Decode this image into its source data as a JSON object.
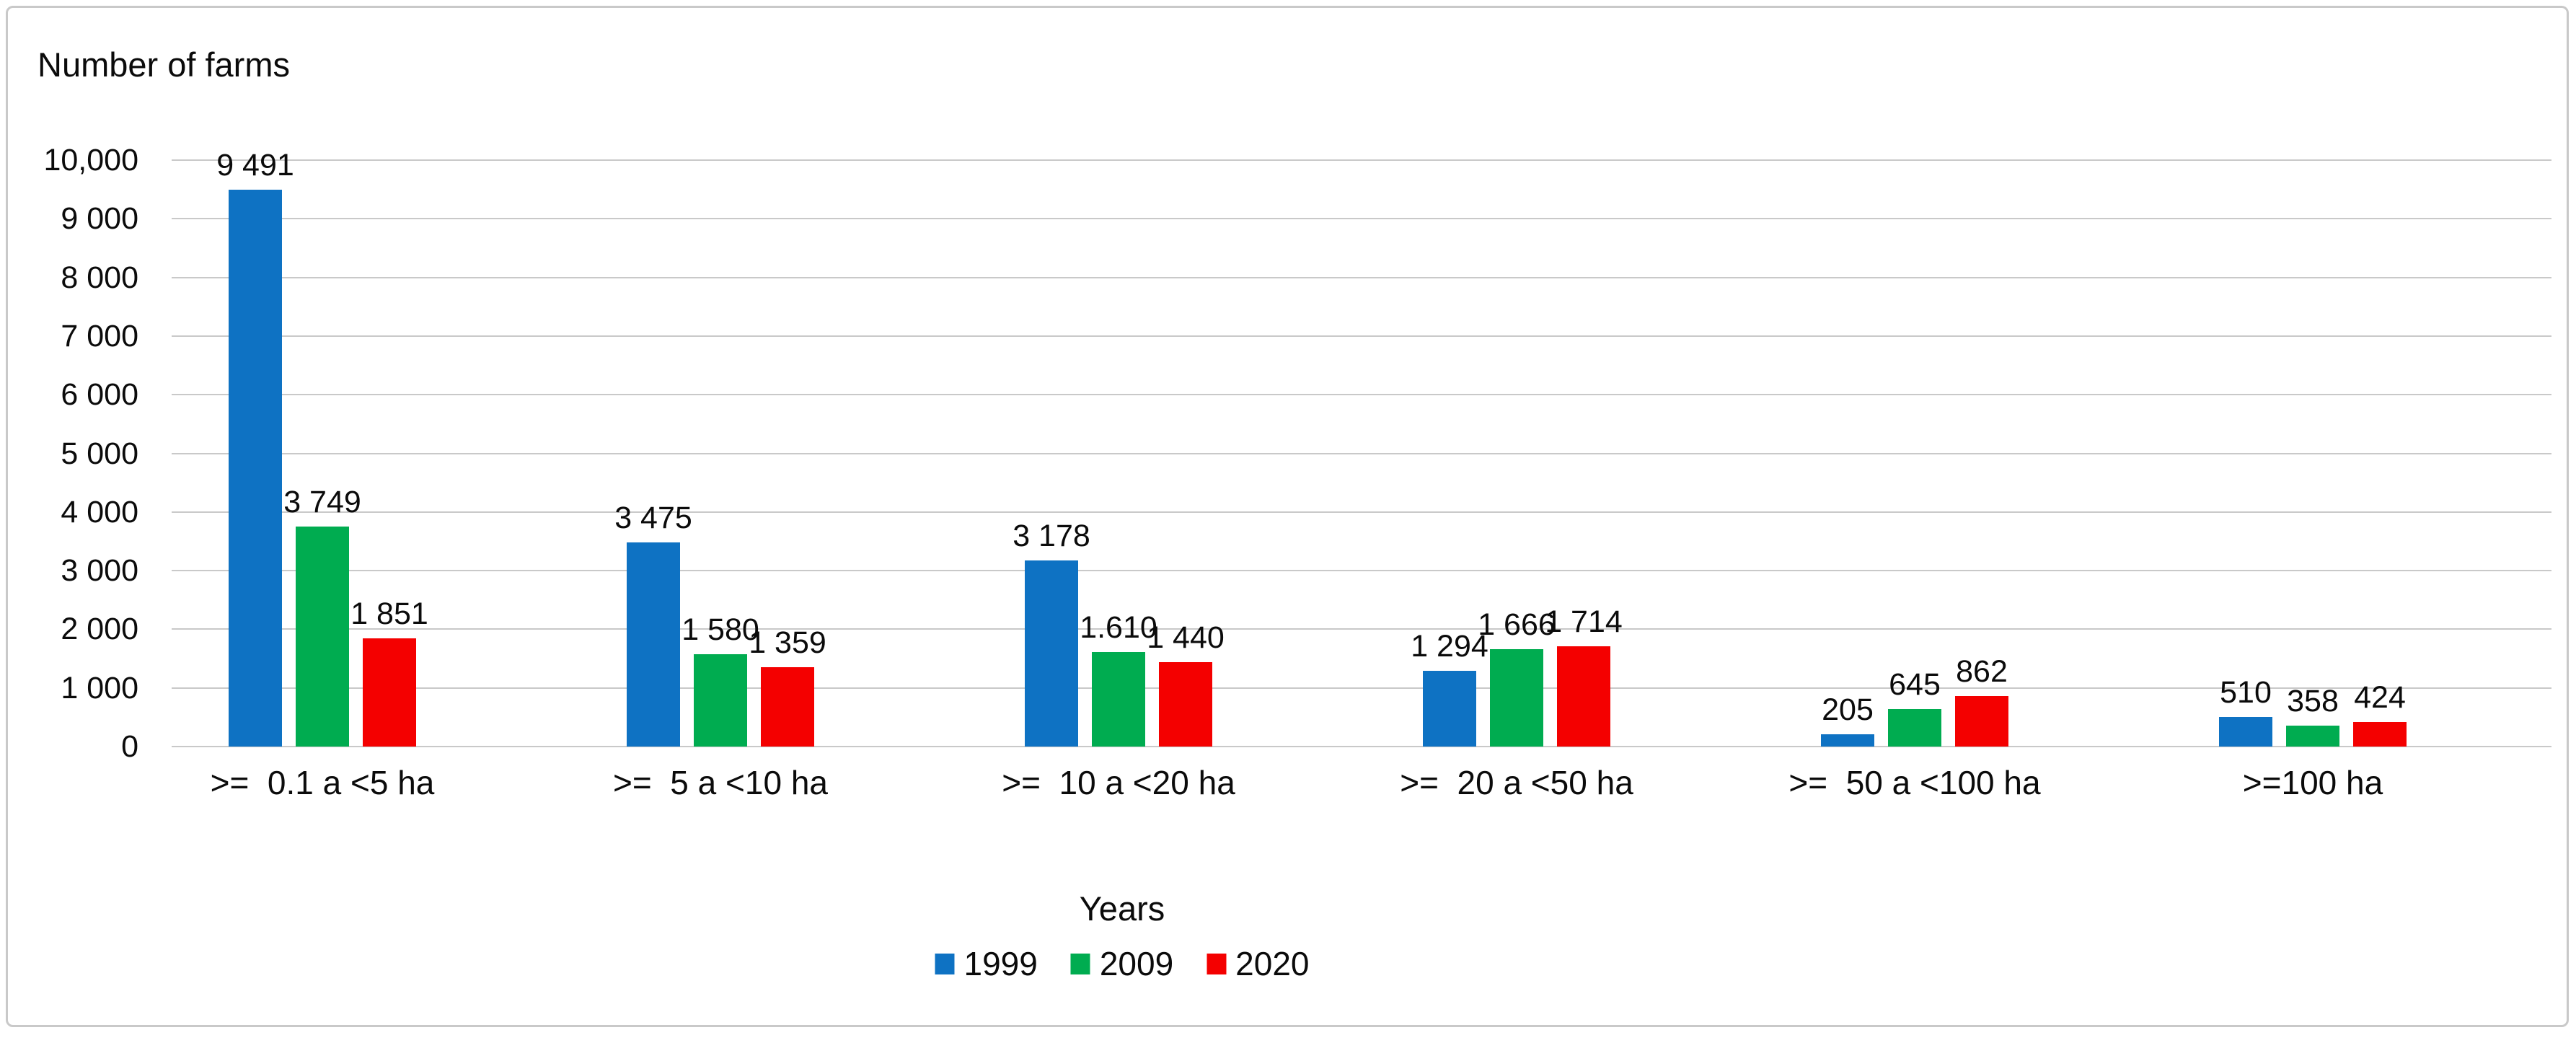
{
  "chart_title": "Number of farms",
  "legend": {
    "title": "Years"
  },
  "colors": {
    "series_1999": "#0e72c3",
    "series_2009": "#00ac50",
    "series_2020": "#f40000",
    "gridline": "#c9c9c9",
    "frame_border": "#c9c9c9",
    "text": "#0b0b0b",
    "background": "#ffffff"
  },
  "chart_data": {
    "type": "bar",
    "title": "Number of farms",
    "xlabel": "Years",
    "ylabel": "Number of farms",
    "legend_title": "Years",
    "legend_position": "bottom",
    "grid": "horizontal",
    "ylim": [
      0,
      10000
    ],
    "ytick_step": 1000,
    "ytick_labels": [
      "0",
      "1 000",
      "2 000",
      "3 000",
      "4 000",
      "5 000",
      "6 000",
      "7 000",
      "8 000",
      "9 000",
      "10,000"
    ],
    "categories": [
      ">=  0.1 a <5 ha",
      ">=  5 a <10 ha",
      ">=  10 a <20 ha",
      ">=  20 a <50 ha",
      ">=  50 a <100 ha",
      ">=100 ha"
    ],
    "series": [
      {
        "name": "1999",
        "color": "#0e72c3",
        "values": [
          9491,
          3475,
          3178,
          1294,
          205,
          510
        ],
        "labels": [
          "9 491",
          "3 475",
          "3 178",
          "1 294",
          "205",
          "510"
        ]
      },
      {
        "name": "2009",
        "color": "#00ac50",
        "values": [
          3749,
          1580,
          1610,
          1666,
          645,
          358
        ],
        "labels": [
          "3 749",
          "1 580",
          "1.610",
          "1 666",
          "645",
          "358"
        ]
      },
      {
        "name": "2020",
        "color": "#f40000",
        "values": [
          1851,
          1359,
          1440,
          1714,
          862,
          424
        ],
        "labels": [
          "1 851",
          "1 359",
          "1 440",
          "1 714",
          "862",
          "424"
        ]
      }
    ]
  }
}
